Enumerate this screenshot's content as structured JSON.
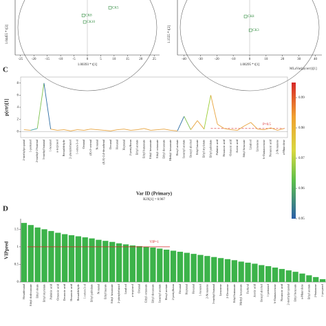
{
  "chart_data": [
    {
      "type": "scatter",
      "xlabel": "1.00393 * t[1]",
      "ylabel": "1.04455 * t[2]",
      "xlim": [
        -27,
        27
      ],
      "ylim": [
        -6,
        4
      ],
      "xticks": [
        -25,
        -20,
        -15,
        -10,
        -5,
        0,
        5,
        10,
        15,
        20,
        25
      ],
      "color": "#2e8b3d",
      "x": [
        -1.5,
        -1.0,
        8.5
      ],
      "values": [
        1.2,
        0.0,
        2.6
      ],
      "point_labels": [
        "CK8",
        "CK10",
        "CK5"
      ]
    },
    {
      "type": "scatter",
      "xlabel": "1.00295 * t[1]",
      "ylabel": "1.1555 * t[2]",
      "xlim": [
        -44,
        44
      ],
      "ylim": [
        -6,
        4
      ],
      "xticks": [
        -40,
        -30,
        -20,
        -10,
        0,
        10,
        20,
        30,
        40
      ],
      "color": "#2e8b3d",
      "x": [
        -2.5,
        0.5
      ],
      "values": [
        1.0,
        -1.5
      ],
      "point_labels": [
        "CK8",
        "CK3"
      ]
    },
    {
      "type": "line",
      "letter": "C",
      "ylabel": "p(ctr)[1]",
      "xlabel": "Var ID (Primary)",
      "subtitle": "R2X[1] = 0.967",
      "ylim": [
        -1,
        9
      ],
      "yticks": [
        0,
        2,
        4,
        6,
        8
      ],
      "categories": [
        "2-methylpropanal",
        "1-pentanol",
        "2-methyl-2-butenal",
        "3-methyl butanal",
        "1-hexanol",
        "a-terpineol",
        "Benzaldehyde",
        "2-phenylethanol",
        "1-octen-3-ol",
        "Octanal",
        "(E)-2-octenal",
        "Nonanal",
        "(E,E)-2,4-decadienal",
        "Decanal",
        "Hexanal",
        "Heptanal",
        "2-pentylfuran",
        "Ethyl acetate",
        "Ethyl butanoate",
        "Ethyl hexanoate",
        "Ethyl octanoate",
        "Ethyl decanoate",
        "Methyl hexanoate",
        "Hexyl acetate",
        "Isoamyl acetate",
        "Benzyl alcohol",
        "Ethyl laurate",
        "Ethyl myristate",
        "Ethyl palmitate",
        "Palmitic acid",
        "Hexanoic acid",
        "Octanoic acid",
        "Acetic acid",
        "Ethyl benzoate",
        "Linalool",
        "Limonene",
        "b-Damascenone",
        "Nonanoic acid",
        "2-Nonanone",
        "a-Muurolene"
      ],
      "values": [
        0.3,
        0.2,
        0.5,
        8.0,
        0.4,
        0.2,
        0.3,
        0.1,
        0.3,
        0.2,
        0.4,
        0.3,
        0.2,
        0.1,
        0.3,
        0.4,
        0.2,
        0.3,
        0.5,
        0.2,
        0.3,
        0.4,
        0.2,
        0.1,
        2.5,
        0.3,
        1.8,
        0.4,
        6.0,
        1.2,
        0.5,
        0.3,
        0.2,
        0.9,
        1.5,
        0.4,
        0.3,
        0.6,
        0.2,
        0.5
      ],
      "colors": [
        "#e8a33c",
        "#e8a33c",
        "#3aa0a0",
        "#7cc04b",
        "#2b6ca3",
        "#e8a33c",
        "#e8a33c",
        "#e8a33c",
        "#e8a33c",
        "#e8a33c",
        "#e8a33c",
        "#e8a33c",
        "#e8a33c",
        "#e8a33c",
        "#e8a33c",
        "#e8a33c",
        "#e8a33c",
        "#e8a33c",
        "#e8a33c",
        "#e8a33c",
        "#e8a33c",
        "#e8a33c",
        "#e8a33c",
        "#e8a33c",
        "#2b6ca3",
        "#7cc04b",
        "#e8a33c",
        "#e8a33c",
        "#9acd32",
        "#e8a33c",
        "#e8a33c",
        "#e8a33c",
        "#e8a33c",
        "#e8a33c",
        "#e8a33c",
        "#e8a33c",
        "#e8a33c",
        "#e8a33c",
        "#e8a33c",
        "#e8a33c"
      ],
      "threshold": 0.5,
      "threshold_label": "P=0.5",
      "colorbar_title": "MLaVar(p(corr))[1]",
      "clim": [
        0.95,
        0.995
      ],
      "cticks": [
        0.95,
        0.96,
        0.97,
        0.98,
        0.99
      ]
    },
    {
      "type": "bar",
      "letter": "D",
      "ylabel": "VIPpred",
      "ylim": [
        0,
        1.8
      ],
      "yticks": [
        0,
        0.5,
        1,
        1.5
      ],
      "color": "#3cb34a",
      "threshold": 1,
      "threshold_label": "VIP=1",
      "categories": [
        "Hexadecanal",
        "Ethyl dodecanoate",
        "Ethyl oleate",
        "Ethyl myristate",
        "Palmitic acid",
        "Octanoic acid",
        "Decanoic acid",
        "Hexanoic acid",
        "Benzaldehyde",
        "1-octen-3-ol",
        "Ethyl palmitate",
        "Nonanal",
        "Ethyl laurate",
        "Ethyl hexanoate",
        "2-phenylethanol",
        "Linalool",
        "a-terpineol",
        "Octanal",
        "Ethyl octanoate",
        "Ethyl decanoate",
        "Isoamyl acetate",
        "Hexyl acetate",
        "2-pentylfuran",
        "Decanal",
        "Heptanal",
        "Hexanal",
        "1-hexanol",
        "2-Nonanone",
        "3-methyl butanal",
        "Limonene",
        "2-Decanone",
        "Ethyl butanoate",
        "Methyl hexanoate",
        "Furfural",
        "Acetic acid",
        "Benzyl alcohol",
        "1-pentanol",
        "b-Damascenone",
        "Nonanoic acid",
        "2-methylpropanal",
        "Ethyl benzoate",
        "a-Muurolene",
        "Ethyl acetate",
        "2-butanone",
        "1-propanol"
      ],
      "values": [
        1.68,
        1.62,
        1.55,
        1.5,
        1.45,
        1.4,
        1.36,
        1.33,
        1.3,
        1.27,
        1.24,
        1.2,
        1.17,
        1.14,
        1.1,
        1.07,
        1.04,
        1.02,
        1.0,
        0.98,
        0.95,
        0.92,
        0.89,
        0.86,
        0.83,
        0.8,
        0.77,
        0.74,
        0.71,
        0.68,
        0.65,
        0.62,
        0.58,
        0.55,
        0.52,
        0.48,
        0.45,
        0.41,
        0.37,
        0.33,
        0.29,
        0.24,
        0.19,
        0.14,
        0.08
      ]
    }
  ]
}
